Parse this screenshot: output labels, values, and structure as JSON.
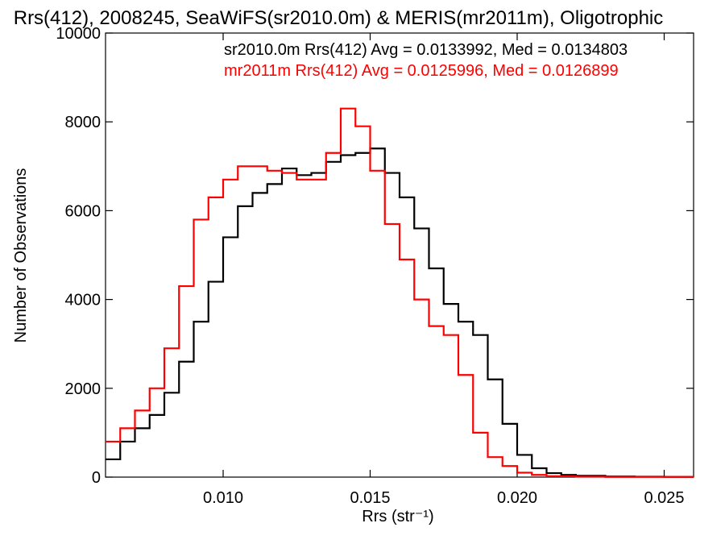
{
  "chart_data": {
    "type": "line",
    "title": "Rrs(412), 2008245, SeaWiFS(sr2010.0m) & MERIS(mr2011m), Oligotrophic",
    "xlabel": "Rrs (str⁻¹)",
    "ylabel": "Number of Observations",
    "xlim": [
      0.006,
      0.026
    ],
    "ylim": [
      0,
      10000
    ],
    "xticks": [
      0.01,
      0.015,
      0.02,
      0.025
    ],
    "xtick_labels": [
      "0.010",
      "0.015",
      "0.020",
      "0.025"
    ],
    "yticks": [
      0,
      2000,
      4000,
      6000,
      8000,
      10000
    ],
    "ytick_labels": [
      "0",
      "2000",
      "4000",
      "6000",
      "8000",
      "10000"
    ],
    "grid": false,
    "legend_position": "top-right",
    "series": [
      {
        "name": "sr2010.0m Rrs(412) Avg = 0.0133992, Med = 0.0134803",
        "color": "#000000",
        "style": "step",
        "x": [
          0.006,
          0.0065,
          0.007,
          0.0075,
          0.008,
          0.0085,
          0.009,
          0.0095,
          0.01,
          0.0105,
          0.011,
          0.0115,
          0.012,
          0.0125,
          0.013,
          0.0135,
          0.014,
          0.0145,
          0.015,
          0.0155,
          0.016,
          0.0165,
          0.017,
          0.0175,
          0.018,
          0.0185,
          0.019,
          0.0195,
          0.02,
          0.0205,
          0.021,
          0.0215,
          0.022,
          0.023,
          0.024,
          0.025,
          0.026
        ],
        "y": [
          400,
          800,
          1100,
          1400,
          1900,
          2600,
          3500,
          4400,
          5400,
          6100,
          6400,
          6600,
          6950,
          6800,
          6850,
          7100,
          7250,
          7300,
          7400,
          6850,
          6300,
          5600,
          4700,
          3900,
          3500,
          3200,
          2200,
          1200,
          500,
          200,
          90,
          50,
          30,
          15,
          10,
          5,
          5
        ]
      },
      {
        "name": "mr2011m Rrs(412) Avg = 0.0125996, Med = 0.0126899",
        "color": "#ff0000",
        "style": "step",
        "x": [
          0.006,
          0.0065,
          0.007,
          0.0075,
          0.008,
          0.0085,
          0.009,
          0.0095,
          0.01,
          0.0105,
          0.011,
          0.0115,
          0.012,
          0.0125,
          0.013,
          0.0135,
          0.014,
          0.0145,
          0.015,
          0.0155,
          0.016,
          0.0165,
          0.017,
          0.0175,
          0.018,
          0.0185,
          0.019,
          0.0195,
          0.02,
          0.0205,
          0.021,
          0.022,
          0.023,
          0.024,
          0.025,
          0.026
        ],
        "y": [
          800,
          1100,
          1500,
          2000,
          2900,
          4300,
          5800,
          6300,
          6700,
          7000,
          7000,
          6900,
          6850,
          6700,
          6700,
          7300,
          8300,
          7900,
          6900,
          5700,
          4900,
          4000,
          3400,
          3200,
          2300,
          1000,
          450,
          250,
          100,
          50,
          20,
          10,
          5,
          5,
          5,
          5
        ]
      }
    ]
  }
}
